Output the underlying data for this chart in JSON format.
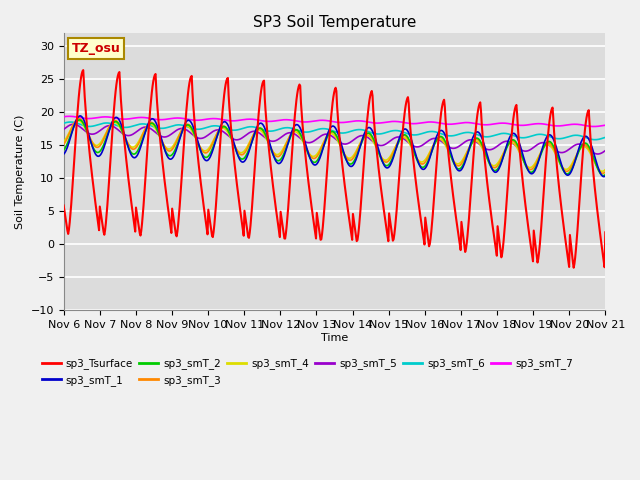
{
  "title": "SP3 Soil Temperature",
  "xlabel": "Time",
  "ylabel": "Soil Temperature (C)",
  "ylim": [
    -10,
    32
  ],
  "yticks": [
    -10,
    -5,
    0,
    5,
    10,
    15,
    20,
    25,
    30
  ],
  "xtick_labels": [
    "Nov 6",
    "Nov 7",
    "Nov 8",
    "Nov 9",
    "Nov 10",
    "Nov 11",
    "Nov 12",
    "Nov 13",
    "Nov 14",
    "Nov 15",
    "Nov 16",
    "Nov 17",
    "Nov 18",
    "Nov 19",
    "Nov 20",
    "Nov 21"
  ],
  "annotation_text": "TZ_osu",
  "annotation_color": "#cc0000",
  "annotation_bg": "#ffffcc",
  "annotation_border": "#aa8800",
  "series_colors": {
    "sp3_Tsurface": "#ff0000",
    "sp3_smT_1": "#0000cc",
    "sp3_smT_2": "#00cc00",
    "sp3_smT_3": "#ff8800",
    "sp3_smT_4": "#dddd00",
    "sp3_smT_5": "#9900cc",
    "sp3_smT_6": "#00cccc",
    "sp3_smT_7": "#ff00ff"
  },
  "plot_bg": "#dcdcdc",
  "fig_bg": "#f0f0f0",
  "grid_color": "#ffffff",
  "n_days": 15,
  "pts_per_day": 48
}
